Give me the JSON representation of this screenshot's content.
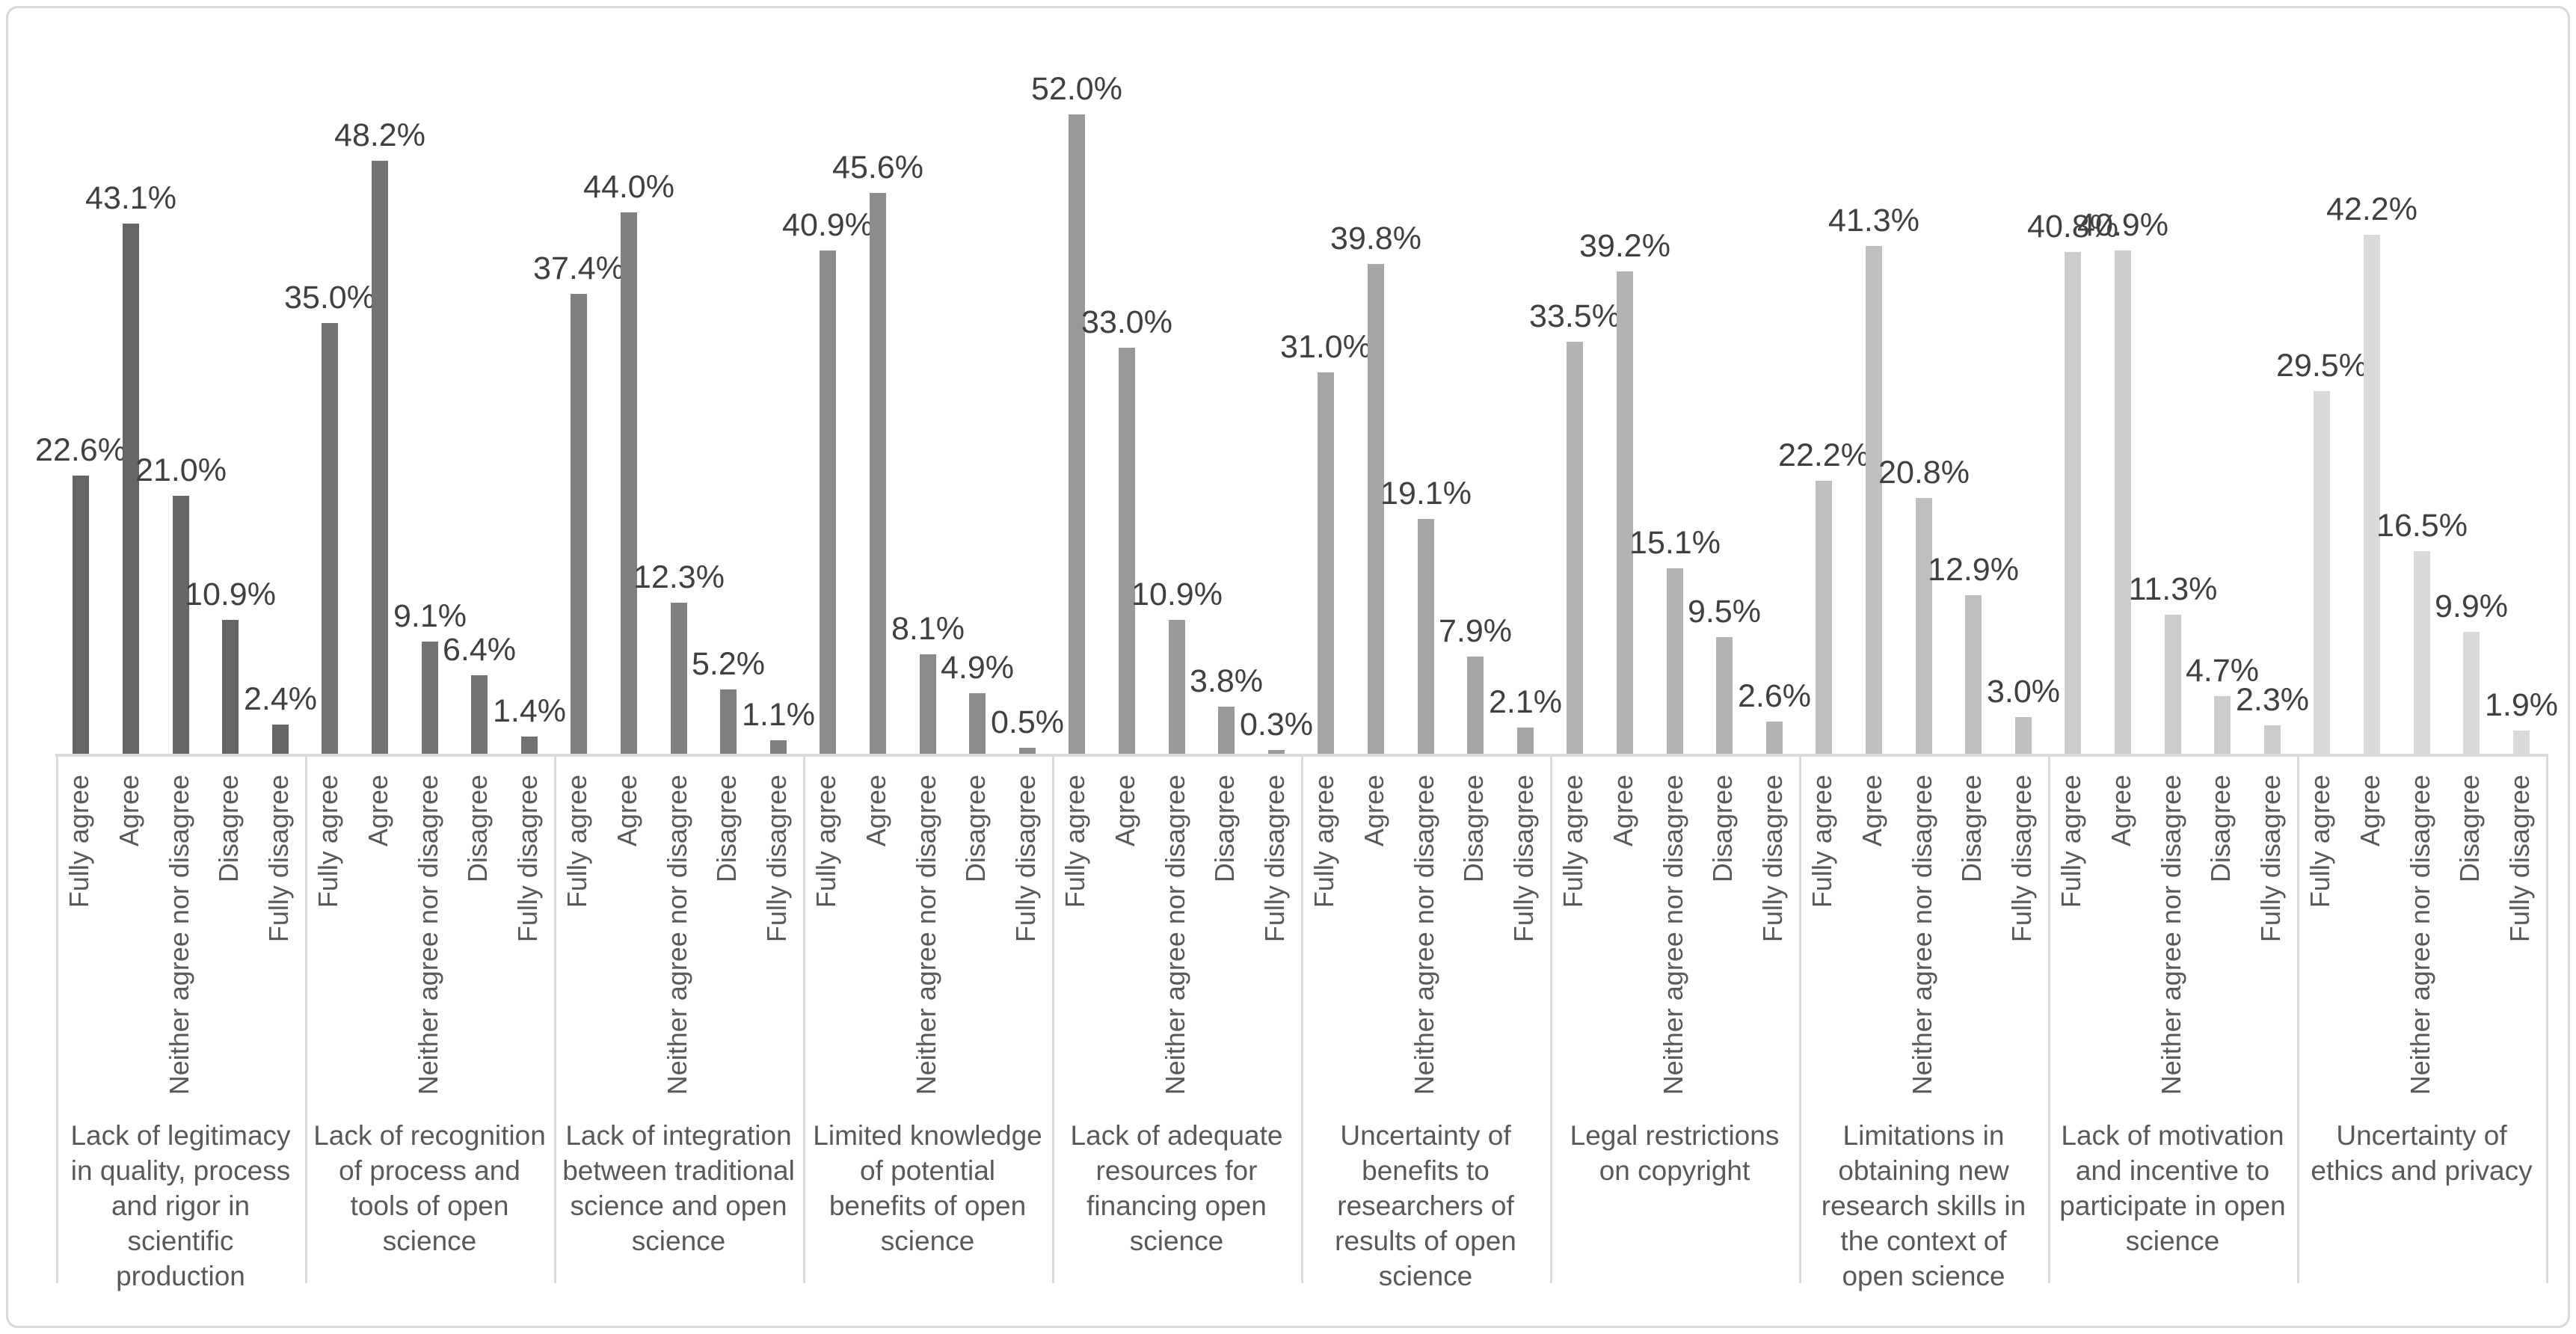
{
  "chart_data": {
    "type": "bar",
    "title": "",
    "legend": "none",
    "grid": "off",
    "ylim": [
      0,
      55
    ],
    "value_format": "percent_one_decimal",
    "response_scale": [
      "Fully agree",
      "Agree",
      "Neither agree nor disagree",
      "Disagree",
      "Fully disagree"
    ],
    "groups": [
      {
        "category": "Lack of legitimacy in quality, process and rigor in scientific production",
        "values": [
          22.6,
          43.1,
          21.0,
          10.9,
          2.4
        ],
        "labels": [
          "22.6%",
          "43.1%",
          "21.0%",
          "10.9%",
          "2.4%"
        ],
        "color": "#666666"
      },
      {
        "category": "Lack of recognition of process and tools of open science",
        "values": [
          35.0,
          48.2,
          9.1,
          6.4,
          1.4
        ],
        "labels": [
          "35.0%",
          "48.2%",
          "9.1%",
          "6.4%",
          "1.4%"
        ],
        "color": "#737373"
      },
      {
        "category": "Lack of integration between traditional science and open science",
        "values": [
          37.4,
          44.0,
          12.3,
          5.2,
          1.1
        ],
        "labels": [
          "37.4%",
          "44.0%",
          "12.3%",
          "5.2%",
          "1.1%"
        ],
        "color": "#808080"
      },
      {
        "category": "Limited knowledge of potential benefits of open science",
        "values": [
          40.9,
          45.6,
          8.1,
          4.9,
          0.5
        ],
        "labels": [
          "40.9%",
          "45.6%",
          "8.1%",
          "4.9%",
          "0.5%"
        ],
        "color": "#8c8c8c"
      },
      {
        "category": "Lack of adequate resources for financing open science",
        "values": [
          52.0,
          33.0,
          10.9,
          3.8,
          0.3
        ],
        "labels": [
          "52.0%",
          "33.0%",
          "10.9%",
          "3.8%",
          "0.3%"
        ],
        "color": "#999999"
      },
      {
        "category": "Uncertainty of benefits to researchers of results of open science",
        "values": [
          31.0,
          39.8,
          19.1,
          7.9,
          2.1
        ],
        "labels": [
          "31.0%",
          "39.8%",
          "19.1%",
          "7.9%",
          "2.1%"
        ],
        "color": "#a6a6a6"
      },
      {
        "category": "Legal restrictions on copyright",
        "values": [
          33.5,
          39.2,
          15.1,
          9.5,
          2.6
        ],
        "labels": [
          "33.5%",
          "39.2%",
          "15.1%",
          "9.5%",
          "2.6%"
        ],
        "color": "#b3b3b3"
      },
      {
        "category": "Limitations in obtaining new research skills in the context of open science",
        "values": [
          22.2,
          41.3,
          20.8,
          12.9,
          3.0
        ],
        "labels": [
          "22.2%",
          "41.3%",
          "20.8%",
          "12.9%",
          "3.0%"
        ],
        "color": "#bfbfbf"
      },
      {
        "category": "Lack of motivation and incentive to participate in open science",
        "values": [
          40.8,
          40.9,
          11.3,
          4.7,
          2.3
        ],
        "labels": [
          "40.8%",
          "40.9%",
          "11.3%",
          "4.7%",
          "2.3%"
        ],
        "color": "#cccccc"
      },
      {
        "category": "Uncertainty of ethics and privacy",
        "values": [
          29.5,
          42.2,
          16.5,
          9.9,
          1.9
        ],
        "labels": [
          "29.5%",
          "42.2%",
          "16.5%",
          "9.9%",
          "1.9%"
        ],
        "color": "#d9d9d9"
      }
    ],
    "style_colors": {
      "axis_line": "#d9d9d9",
      "chart_border": "#d9d9d9",
      "value_label_text": "#404040",
      "axis_text": "#595959",
      "background": "#ffffff"
    }
  }
}
